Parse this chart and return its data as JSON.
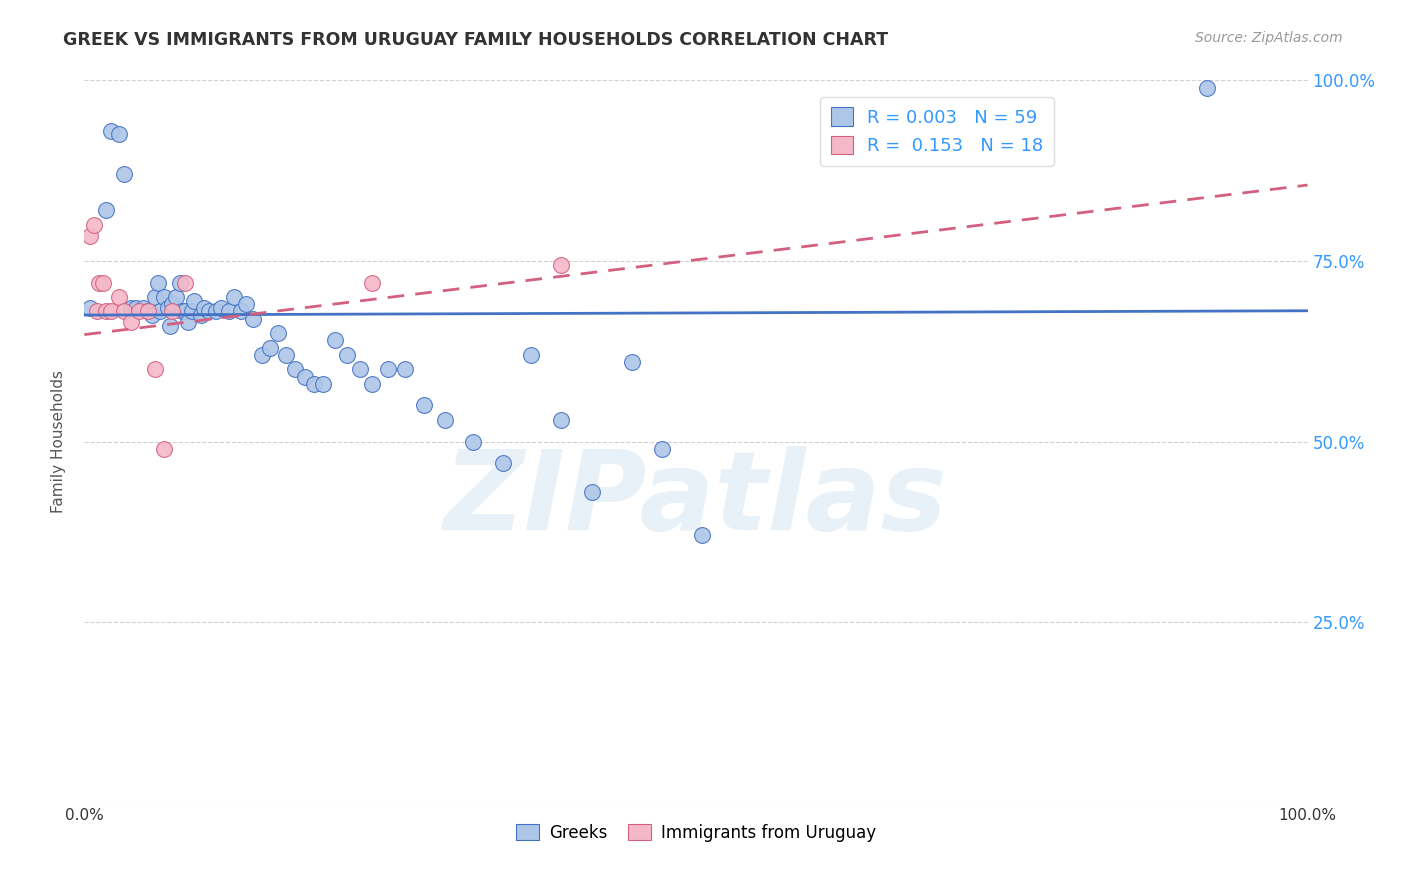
{
  "title": "GREEK VS IMMIGRANTS FROM URUGUAY FAMILY HOUSEHOLDS CORRELATION CHART",
  "source": "Source: ZipAtlas.com",
  "ylabel": "Family Households",
  "watermark": "ZIPatlas",
  "legend_blue_R": "0.003",
  "legend_blue_N": "59",
  "legend_pink_R": "0.153",
  "legend_pink_N": "18",
  "legend_label_blue": "Greeks",
  "legend_label_pink": "Immigrants from Uruguay",
  "blue_color": "#aec6e8",
  "blue_line_color": "#4472c4",
  "pink_color": "#f4b8c8",
  "pink_line_color": "#d46080",
  "right_axis_color": "#3399ff",
  "grid_color": "#cccccc",
  "background_color": "#ffffff",
  "title_color": "#333333",
  "xlim": [
    0.0,
    1.0
  ],
  "ylim": [
    0.0,
    1.0
  ],
  "yticks": [
    0.0,
    0.25,
    0.5,
    0.75,
    1.0
  ],
  "ytick_labels": [
    "",
    "25.0%",
    "50.0%",
    "75.0%",
    "100.0%"
  ],
  "blue_x": [
    0.005,
    0.018,
    0.022,
    0.028,
    0.032,
    0.038,
    0.042,
    0.048,
    0.052,
    0.055,
    0.058,
    0.06,
    0.062,
    0.065,
    0.068,
    0.07,
    0.072,
    0.075,
    0.078,
    0.08,
    0.082,
    0.085,
    0.088,
    0.09,
    0.095,
    0.098,
    0.102,
    0.108,
    0.112,
    0.118,
    0.122,
    0.128,
    0.132,
    0.138,
    0.145,
    0.152,
    0.158,
    0.165,
    0.172,
    0.18,
    0.188,
    0.195,
    0.205,
    0.215,
    0.225,
    0.235,
    0.248,
    0.262,
    0.278,
    0.295,
    0.318,
    0.342,
    0.365,
    0.39,
    0.415,
    0.448,
    0.472,
    0.505,
    0.918
  ],
  "blue_y": [
    0.685,
    0.82,
    0.93,
    0.925,
    0.87,
    0.685,
    0.685,
    0.685,
    0.68,
    0.675,
    0.7,
    0.72,
    0.68,
    0.7,
    0.685,
    0.66,
    0.69,
    0.7,
    0.72,
    0.68,
    0.68,
    0.665,
    0.68,
    0.695,
    0.675,
    0.685,
    0.68,
    0.68,
    0.685,
    0.68,
    0.7,
    0.68,
    0.69,
    0.67,
    0.62,
    0.63,
    0.65,
    0.62,
    0.6,
    0.59,
    0.58,
    0.58,
    0.64,
    0.62,
    0.6,
    0.58,
    0.6,
    0.6,
    0.55,
    0.53,
    0.5,
    0.47,
    0.62,
    0.53,
    0.43,
    0.61,
    0.49,
    0.37,
    0.99
  ],
  "pink_x": [
    0.005,
    0.008,
    0.01,
    0.012,
    0.015,
    0.018,
    0.022,
    0.028,
    0.032,
    0.038,
    0.045,
    0.052,
    0.058,
    0.065,
    0.072,
    0.082,
    0.235,
    0.39
  ],
  "pink_y": [
    0.785,
    0.8,
    0.68,
    0.72,
    0.72,
    0.68,
    0.68,
    0.7,
    0.68,
    0.665,
    0.68,
    0.68,
    0.6,
    0.49,
    0.68,
    0.72,
    0.72,
    0.745
  ],
  "blue_trend_x": [
    0.0,
    1.0
  ],
  "blue_trend_y": [
    0.675,
    0.681
  ],
  "pink_trend_x": [
    0.0,
    1.0
  ],
  "pink_trend_y": [
    0.648,
    0.855
  ]
}
